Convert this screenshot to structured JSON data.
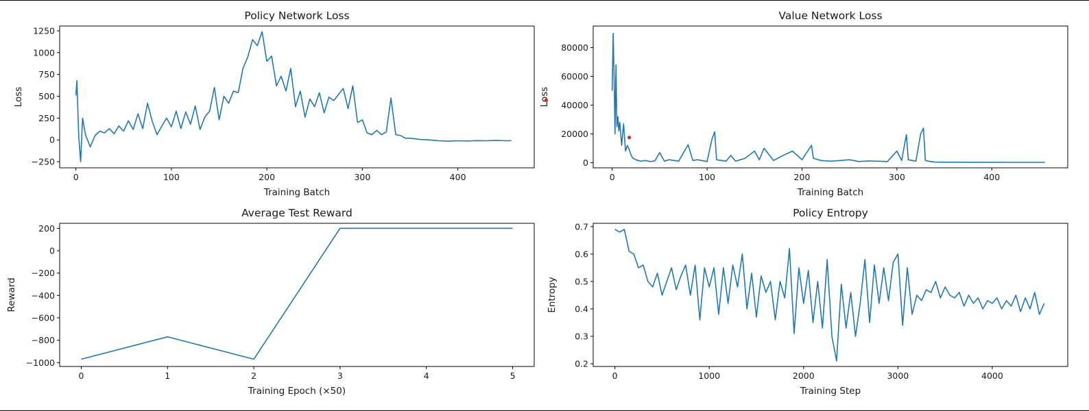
{
  "colors": {
    "series": "#1f77b4",
    "marker": "#d62728",
    "axis": "#000000",
    "text": "#1a1a1a"
  },
  "chart_data": [
    {
      "type": "line",
      "title": "Policy Network Loss",
      "xlabel": "Training Batch",
      "ylabel": "Loss",
      "xlim": [
        -17,
        480
      ],
      "ylim": [
        -320,
        1305
      ],
      "xticks": [
        0,
        100,
        200,
        300,
        400
      ],
      "yticks": [
        -250,
        0,
        250,
        500,
        750,
        1000,
        1250
      ],
      "grid": false,
      "legend": "none",
      "series": [
        {
          "x": [
            0,
            1,
            3,
            5,
            7,
            10,
            15,
            20,
            25,
            30,
            35,
            40,
            45,
            50,
            55,
            60,
            65,
            70,
            75,
            80,
            85,
            90,
            95,
            100,
            105,
            110,
            115,
            120,
            125,
            130,
            135,
            140,
            145,
            150,
            155,
            160,
            165,
            170,
            175,
            180,
            185,
            190,
            195,
            200,
            205,
            210,
            215,
            220,
            225,
            230,
            235,
            240,
            245,
            250,
            255,
            260,
            265,
            270,
            275,
            280,
            285,
            290,
            295,
            300,
            305,
            310,
            315,
            320,
            325,
            330,
            335,
            340,
            345,
            350,
            360,
            370,
            380,
            390,
            400,
            410,
            420,
            430,
            440,
            450,
            456
          ],
          "y": [
            510,
            680,
            40,
            -250,
            250,
            60,
            -80,
            50,
            100,
            80,
            130,
            70,
            160,
            100,
            220,
            120,
            300,
            130,
            420,
            210,
            60,
            160,
            250,
            150,
            330,
            130,
            320,
            180,
            390,
            120,
            260,
            330,
            600,
            230,
            500,
            420,
            560,
            540,
            820,
            950,
            1150,
            1080,
            1240,
            900,
            960,
            620,
            730,
            560,
            820,
            380,
            560,
            260,
            470,
            380,
            540,
            310,
            490,
            450,
            520,
            590,
            360,
            620,
            200,
            230,
            80,
            60,
            110,
            60,
            90,
            480,
            60,
            50,
            20,
            20,
            5,
            0,
            -10,
            -15,
            -10,
            -12,
            -8,
            -10,
            -5,
            -10,
            -8
          ]
        }
      ]
    },
    {
      "type": "line",
      "title": "Value Network Loss",
      "xlabel": "Training Batch",
      "ylabel": "Loss",
      "xlim": [
        -20,
        480
      ],
      "ylim": [
        -3600,
        95000
      ],
      "xticks": [
        0,
        100,
        200,
        300,
        400
      ],
      "yticks": [
        0,
        20000,
        40000,
        60000,
        80000
      ],
      "grid": false,
      "legend": "none",
      "markers": [
        {
          "x": 18,
          "y": 17500
        }
      ],
      "series": [
        {
          "x": [
            0,
            1,
            2,
            3,
            4,
            5,
            6,
            7,
            8,
            10,
            12,
            14,
            16,
            18,
            20,
            22,
            25,
            30,
            35,
            40,
            45,
            50,
            55,
            60,
            70,
            80,
            85,
            90,
            100,
            105,
            108,
            110,
            120,
            125,
            130,
            140,
            150,
            155,
            160,
            170,
            180,
            190,
            200,
            210,
            212,
            220,
            230,
            240,
            250,
            260,
            270,
            280,
            290,
            300,
            305,
            310,
            312,
            320,
            325,
            328,
            330,
            335,
            340,
            350,
            360,
            380,
            400,
            420,
            440,
            456
          ],
          "y": [
            50000,
            90000,
            62000,
            20000,
            68000,
            25000,
            32000,
            22000,
            28000,
            12000,
            27000,
            8000,
            12000,
            9000,
            5000,
            3000,
            2000,
            1000,
            1500,
            800,
            1200,
            7000,
            1000,
            2000,
            1000,
            12500,
            1500,
            2000,
            800,
            16000,
            21500,
            2000,
            1000,
            5000,
            1000,
            3000,
            8000,
            2000,
            10000,
            1500,
            5000,
            8000,
            2000,
            12000,
            3000,
            1500,
            1000,
            1500,
            2000,
            800,
            1200,
            1000,
            800,
            8000,
            1500,
            19500,
            2000,
            1000,
            20000,
            24000,
            1500,
            800,
            400,
            300,
            300,
            250,
            250,
            200,
            200,
            200
          ]
        }
      ]
    },
    {
      "type": "line",
      "title": "Average Test Reward",
      "xlabel": "Training Epoch (×50)",
      "ylabel": "Reward",
      "xlim": [
        -0.25,
        5.25
      ],
      "ylim": [
        -1035,
        245
      ],
      "xticks": [
        0,
        1,
        2,
        3,
        4,
        5
      ],
      "yticks": [
        -1000,
        -800,
        -600,
        -400,
        -200,
        0,
        200
      ],
      "grid": false,
      "legend": "none",
      "series": [
        {
          "x": [
            0,
            1,
            2,
            3,
            4,
            5
          ],
          "y": [
            -970,
            -770,
            -970,
            200,
            200,
            200
          ]
        }
      ]
    },
    {
      "type": "line",
      "title": "Policy Entropy",
      "xlabel": "Training Step",
      "ylabel": "Entropy",
      "xlim": [
        -230,
        4800
      ],
      "ylim": [
        0.19,
        0.712
      ],
      "xticks": [
        0,
        1000,
        2000,
        3000,
        4000
      ],
      "yticks": [
        0.2,
        0.3,
        0.4,
        0.5,
        0.6,
        0.7
      ],
      "grid": false,
      "legend": "none",
      "series": [
        {
          "x": [
            0,
            50,
            100,
            150,
            200,
            250,
            300,
            350,
            400,
            450,
            500,
            550,
            600,
            650,
            700,
            750,
            800,
            850,
            900,
            950,
            1000,
            1050,
            1100,
            1150,
            1200,
            1250,
            1300,
            1350,
            1400,
            1450,
            1500,
            1550,
            1600,
            1650,
            1700,
            1750,
            1800,
            1850,
            1900,
            1950,
            2000,
            2050,
            2100,
            2150,
            2200,
            2250,
            2300,
            2350,
            2400,
            2450,
            2500,
            2550,
            2600,
            2650,
            2700,
            2750,
            2800,
            2850,
            2900,
            2950,
            3000,
            3050,
            3100,
            3150,
            3200,
            3250,
            3300,
            3350,
            3400,
            3450,
            3500,
            3550,
            3600,
            3650,
            3700,
            3750,
            3800,
            3850,
            3900,
            3950,
            4000,
            4050,
            4100,
            4150,
            4200,
            4250,
            4300,
            4350,
            4400,
            4450,
            4500,
            4550
          ],
          "y": [
            0.69,
            0.68,
            0.69,
            0.61,
            0.6,
            0.55,
            0.56,
            0.5,
            0.48,
            0.53,
            0.45,
            0.5,
            0.55,
            0.47,
            0.52,
            0.56,
            0.45,
            0.56,
            0.36,
            0.55,
            0.48,
            0.55,
            0.38,
            0.55,
            0.42,
            0.56,
            0.48,
            0.6,
            0.4,
            0.53,
            0.37,
            0.52,
            0.46,
            0.5,
            0.36,
            0.5,
            0.44,
            0.62,
            0.31,
            0.55,
            0.42,
            0.54,
            0.35,
            0.5,
            0.33,
            0.58,
            0.3,
            0.21,
            0.49,
            0.33,
            0.46,
            0.3,
            0.42,
            0.58,
            0.35,
            0.56,
            0.42,
            0.55,
            0.43,
            0.57,
            0.6,
            0.34,
            0.55,
            0.38,
            0.45,
            0.43,
            0.47,
            0.46,
            0.5,
            0.44,
            0.48,
            0.45,
            0.44,
            0.46,
            0.41,
            0.45,
            0.42,
            0.44,
            0.4,
            0.43,
            0.42,
            0.44,
            0.4,
            0.43,
            0.41,
            0.45,
            0.39,
            0.44,
            0.4,
            0.46,
            0.38,
            0.42
          ]
        }
      ]
    }
  ],
  "stray_marker": {
    "figure_x": 0.5015,
    "figure_y": 0.244
  }
}
